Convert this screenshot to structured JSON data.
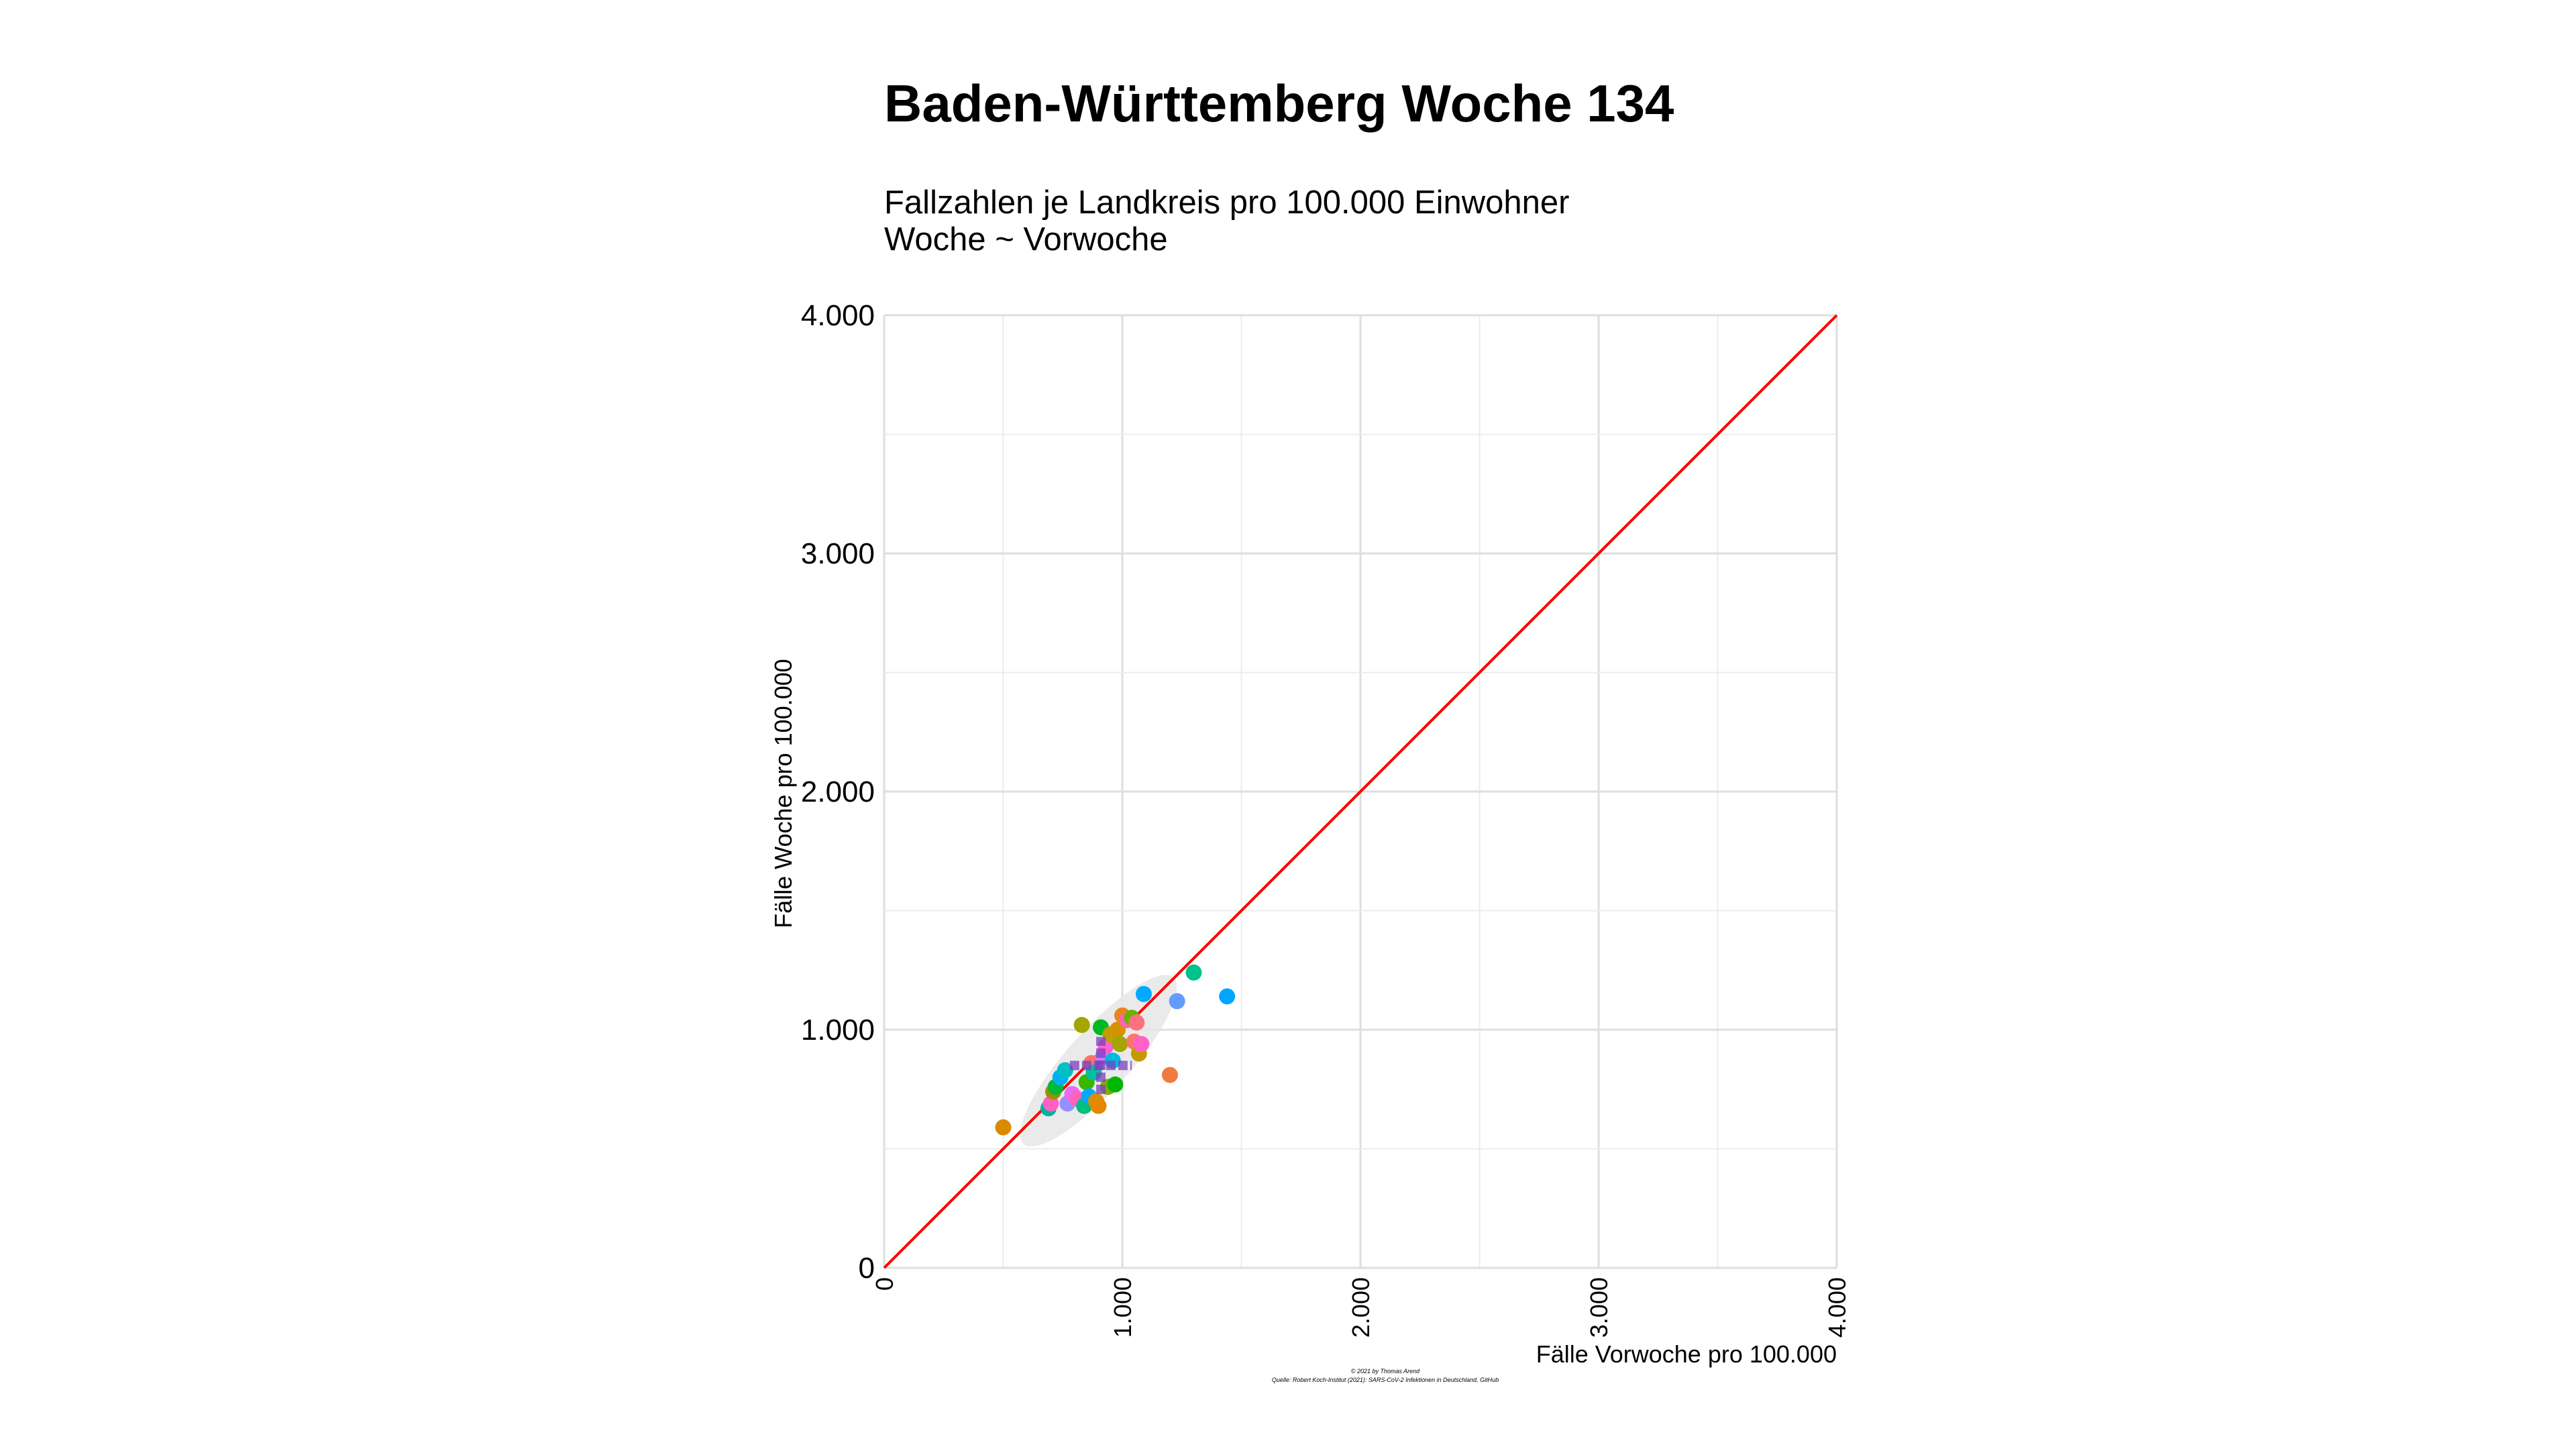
{
  "title": "Baden-Württemberg Woche 134",
  "subtitle_line1": "Fallzahlen je Landkreis pro 100.000 Einwohner",
  "subtitle_line2": "Woche ~ Vorwoche",
  "caption_line1": "© 2021 by Thomas Arend",
  "caption_line2": "Quelle: Robert Koch-Institut (2021): SARS-CoV-2 Infektionen in Deutschland, GitHub",
  "chart_data": {
    "type": "scatter",
    "xlabel": "Fälle Vorwoche pro 100.000",
    "ylabel": "Fälle Woche pro 100.000",
    "xlim": [
      0,
      4000
    ],
    "ylim": [
      0,
      4000
    ],
    "x_ticks": [
      0,
      1000,
      2000,
      3000,
      4000
    ],
    "y_ticks": [
      0,
      1000,
      2000,
      3000,
      4000
    ],
    "x_tick_labels": [
      "0",
      "1.000",
      "2.000",
      "3.000",
      "4.000"
    ],
    "y_tick_labels": [
      "0",
      "1.000",
      "2.000",
      "3.000",
      "4.000"
    ],
    "grid": true,
    "legend": "none",
    "reference_line": {
      "slope": 1,
      "intercept": 0,
      "color": "#ff0000"
    },
    "ellipse": {
      "cx": 900,
      "cy": 870,
      "rx": 470,
      "ry": 130,
      "angle_deg": 48,
      "color": "#e6e6e6"
    },
    "mean_cross": {
      "x": 910,
      "y": 850,
      "x_halfwidth": 130,
      "y_halfwidth": 120,
      "color": "#7b3fbf"
    },
    "points": [
      {
        "x": 500,
        "y": 590,
        "color": "#d98a00"
      },
      {
        "x": 690,
        "y": 670,
        "color": "#00b2a3"
      },
      {
        "x": 700,
        "y": 690,
        "color": "#ff61c3"
      },
      {
        "x": 710,
        "y": 740,
        "color": "#a58d00"
      },
      {
        "x": 720,
        "y": 760,
        "color": "#00ba38"
      },
      {
        "x": 740,
        "y": 800,
        "color": "#00b0f6"
      },
      {
        "x": 760,
        "y": 830,
        "color": "#00bfc4"
      },
      {
        "x": 770,
        "y": 690,
        "color": "#9590ff"
      },
      {
        "x": 790,
        "y": 730,
        "color": "#e76bf3"
      },
      {
        "x": 810,
        "y": 710,
        "color": "#ff62bc"
      },
      {
        "x": 830,
        "y": 1020,
        "color": "#a3a500"
      },
      {
        "x": 840,
        "y": 680,
        "color": "#00bf7d"
      },
      {
        "x": 850,
        "y": 780,
        "color": "#39b600"
      },
      {
        "x": 860,
        "y": 720,
        "color": "#00a9ff"
      },
      {
        "x": 870,
        "y": 860,
        "color": "#f8766d"
      },
      {
        "x": 880,
        "y": 820,
        "color": "#00c19f"
      },
      {
        "x": 890,
        "y": 700,
        "color": "#d89000"
      },
      {
        "x": 900,
        "y": 680,
        "color": "#e58700"
      },
      {
        "x": 910,
        "y": 1010,
        "color": "#00b81f"
      },
      {
        "x": 920,
        "y": 890,
        "color": "#c77cff"
      },
      {
        "x": 930,
        "y": 930,
        "color": "#fd61d1"
      },
      {
        "x": 940,
        "y": 760,
        "color": "#85ad00"
      },
      {
        "x": 950,
        "y": 980,
        "color": "#bf9e00"
      },
      {
        "x": 960,
        "y": 870,
        "color": "#00bbdb"
      },
      {
        "x": 970,
        "y": 770,
        "color": "#00b700"
      },
      {
        "x": 980,
        "y": 1000,
        "color": "#d39200"
      },
      {
        "x": 990,
        "y": 940,
        "color": "#a3a500"
      },
      {
        "x": 1000,
        "y": 1060,
        "color": "#e7861b"
      },
      {
        "x": 1020,
        "y": 1040,
        "color": "#ff64b0"
      },
      {
        "x": 1040,
        "y": 1050,
        "color": "#6bb100"
      },
      {
        "x": 1050,
        "y": 950,
        "color": "#f8766d"
      },
      {
        "x": 1060,
        "y": 1030,
        "color": "#fc717f"
      },
      {
        "x": 1070,
        "y": 900,
        "color": "#c49a00"
      },
      {
        "x": 1080,
        "y": 940,
        "color": "#ff61c9"
      },
      {
        "x": 1090,
        "y": 1150,
        "color": "#00a9ff"
      },
      {
        "x": 1200,
        "y": 810,
        "color": "#f07b40"
      },
      {
        "x": 1230,
        "y": 1120,
        "color": "#619cff"
      },
      {
        "x": 1300,
        "y": 1240,
        "color": "#00c08b"
      },
      {
        "x": 1440,
        "y": 1140,
        "color": "#00a5ff"
      }
    ]
  }
}
